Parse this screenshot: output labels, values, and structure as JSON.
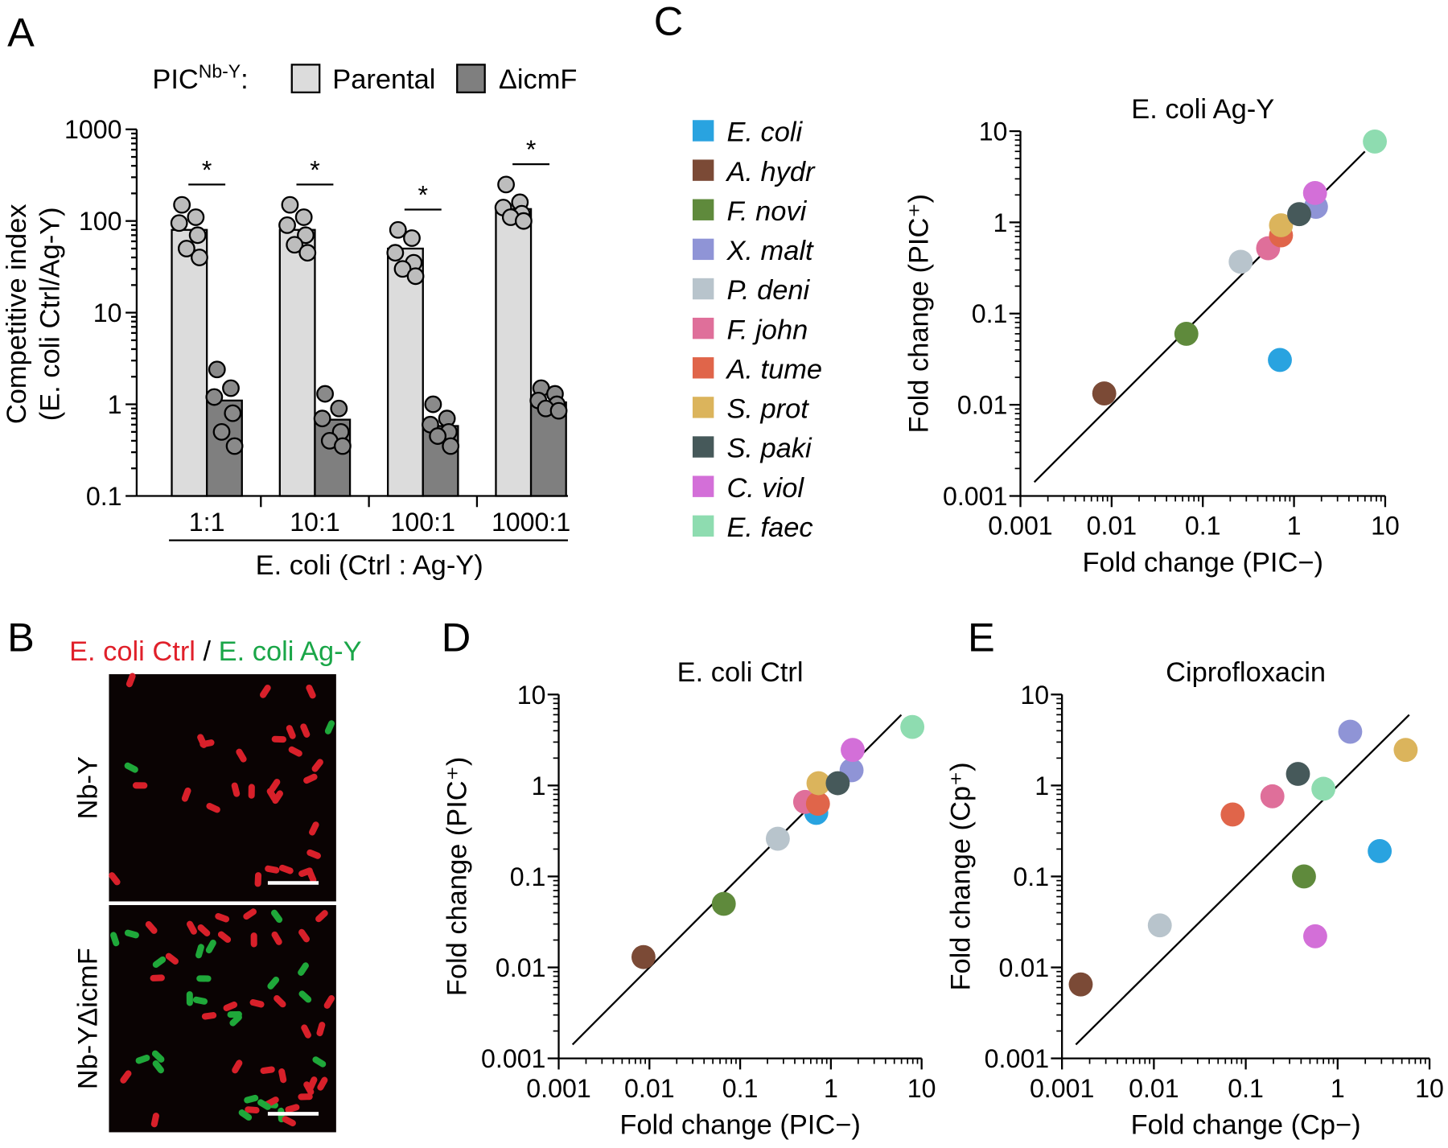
{
  "panel_labels": [
    "A",
    "B",
    "C",
    "D",
    "E"
  ],
  "legend": {
    "names": [
      "E. coli",
      "A. hydr",
      "F. novi",
      "X. malt",
      "P. deni",
      "F. john",
      "A. tume",
      "S. prot",
      "S. paki",
      "C. viol",
      "E. faec"
    ],
    "colors": [
      "#29a3e0",
      "#7b4a36",
      "#5f8a3c",
      "#8f94d6",
      "#b8c4cc",
      "#df6f9a",
      "#e0654a",
      "#dbb45c",
      "#46595a",
      "#d36fd8",
      "#8edcb0"
    ]
  },
  "microscopy": {
    "title": [
      "E. coli Ctrl",
      "/",
      "E. coli Ag-Y"
    ],
    "title_colors": [
      "#e0202a",
      "#000000",
      "#1aa648"
    ],
    "rows": [
      "Nb-Y",
      "Nb-YΔicmF"
    ]
  },
  "chart_data": [
    {
      "type": "bar",
      "log_y": true,
      "legend_title": [
        "PIC",
        "Nb-Y",
        ":"
      ],
      "categories": [
        "1:1",
        "10:1",
        "100:1",
        "1000:1"
      ],
      "series": [
        {
          "name": "Parental",
          "color": "#dcdcdc",
          "values": [
            80,
            80,
            50,
            135
          ],
          "points": [
            [
              150,
              110,
              95,
              70,
              50,
              40
            ],
            [
              150,
              110,
              90,
              70,
              55,
              45
            ],
            [
              80,
              65,
              45,
              35,
              30,
              25
            ],
            [
              250,
              160,
              140,
              120,
              110,
              100
            ]
          ]
        },
        {
          "name": "ΔicmF",
          "color": "#7f7f7f",
          "values": [
            1.1,
            0.68,
            0.58,
            1.05
          ],
          "points": [
            [
              2.4,
              1.5,
              1.2,
              0.8,
              0.5,
              0.35
            ],
            [
              1.3,
              0.9,
              0.7,
              0.5,
              0.4,
              0.35
            ],
            [
              1.0,
              0.7,
              0.6,
              0.5,
              0.45,
              0.35
            ],
            [
              1.5,
              1.3,
              1.1,
              1.0,
              0.9,
              0.85
            ]
          ]
        }
      ],
      "annotations": [
        "*",
        "*",
        "*",
        "*"
      ],
      "ylim": [
        0.1,
        1000
      ],
      "yticks": [
        0.1,
        1,
        10,
        100,
        1000
      ],
      "ylabel": [
        "Competitive index",
        "(E. coli Ctrl/Ag-Y)"
      ],
      "xlabel": "E. coli (Ctrl : Ag-Y)"
    },
    {
      "type": "scatter",
      "log_x": true,
      "log_y": true,
      "title": "E. coli Ag-Y",
      "show_legend": true,
      "identity_line": true,
      "x": [
        0.7,
        0.0083,
        0.066,
        1.74,
        0.26,
        0.52,
        0.72,
        0.72,
        1.14,
        1.7,
        7.7
      ],
      "y": [
        0.031,
        0.0133,
        0.06,
        1.48,
        0.37,
        0.52,
        0.72,
        0.93,
        1.23,
        2.1,
        7.7
      ],
      "xlim": [
        0.001,
        10
      ],
      "ylim": [
        0.001,
        10
      ],
      "xticks": [
        0.001,
        0.01,
        0.1,
        1,
        10
      ],
      "yticks": [
        0.001,
        0.01,
        0.1,
        1,
        10
      ],
      "xlabel": "Fold change (PIC−)",
      "ylabel": "Fold change (PIC⁺)"
    },
    {
      "type": "scatter",
      "log_x": true,
      "log_y": true,
      "title": "E. coli Ctrl",
      "show_legend": false,
      "identity_line": true,
      "x": [
        0.69,
        0.0086,
        0.066,
        1.69,
        0.26,
        0.52,
        0.72,
        0.73,
        1.19,
        1.74,
        7.9
      ],
      "y": [
        0.5,
        0.013,
        0.05,
        1.47,
        0.26,
        0.66,
        0.63,
        1.06,
        1.06,
        2.46,
        4.4
      ],
      "xlim": [
        0.001,
        10
      ],
      "ylim": [
        0.001,
        10
      ],
      "xticks": [
        0.001,
        0.01,
        0.1,
        1,
        10
      ],
      "yticks": [
        0.001,
        0.01,
        0.1,
        1,
        10
      ],
      "xlabel": "Fold change (PIC−)",
      "ylabel": "Fold change (PIC⁺)"
    },
    {
      "type": "scatter",
      "log_x": true,
      "log_y": true,
      "title": "Ciprofloxacin",
      "show_legend": false,
      "identity_line": true,
      "x": [
        2.87,
        0.0016,
        0.43,
        1.37,
        0.0116,
        0.195,
        0.072,
        5.5,
        0.37,
        0.57,
        0.7
      ],
      "y": [
        0.19,
        0.0065,
        0.1,
        3.9,
        0.029,
        0.76,
        0.48,
        2.46,
        1.34,
        0.022,
        0.92
      ],
      "xlim": [
        0.001,
        10
      ],
      "ylim": [
        0.001,
        10
      ],
      "xticks": [
        0.001,
        0.01,
        0.1,
        1,
        10
      ],
      "yticks": [
        0.001,
        0.01,
        0.1,
        1,
        10
      ],
      "xlabel": "Fold change (Cp−)",
      "ylabel": "Fold change (Cp⁺)"
    }
  ]
}
